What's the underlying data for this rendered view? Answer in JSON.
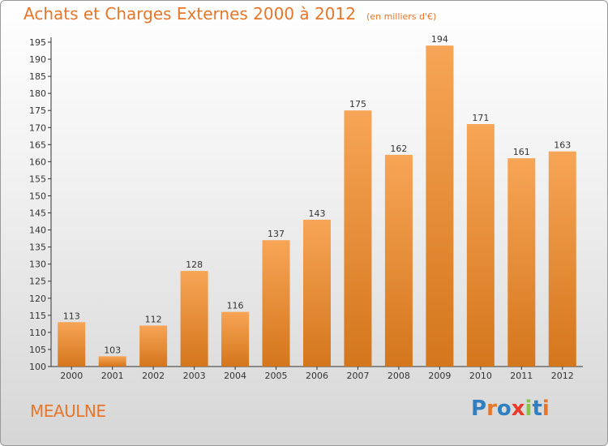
{
  "header": {
    "title": "Achats et Charges Externes 2000 à 2012",
    "subtitle": "(en milliers d'€)"
  },
  "commune": "MEAULNE",
  "logo": {
    "text": "Proxiti",
    "letter_colors": [
      "#2f7fc1",
      "#e8762a",
      "#2f7fc1",
      "#e83a2a",
      "#8bc34a",
      "#2f7fc1",
      "#e8762a"
    ]
  },
  "colors": {
    "accent": "#e8762a",
    "bar_top": "#f7a556",
    "bar_bottom": "#d4761c"
  },
  "chart_data": {
    "type": "bar",
    "categories": [
      "2000",
      "2001",
      "2002",
      "2003",
      "2004",
      "2005",
      "2006",
      "2007",
      "2008",
      "2009",
      "2010",
      "2011",
      "2012"
    ],
    "values": [
      113,
      103,
      112,
      128,
      116,
      137,
      143,
      175,
      162,
      194,
      171,
      161,
      163
    ],
    "title": "Achats et Charges Externes 2000 à 2012",
    "xlabel": "",
    "ylabel": "",
    "ylim": [
      100,
      195
    ],
    "yticks": [
      100,
      105,
      110,
      115,
      120,
      125,
      130,
      135,
      140,
      145,
      150,
      155,
      160,
      165,
      170,
      175,
      180,
      185,
      190,
      195
    ],
    "grid": false,
    "data_labels": true
  }
}
